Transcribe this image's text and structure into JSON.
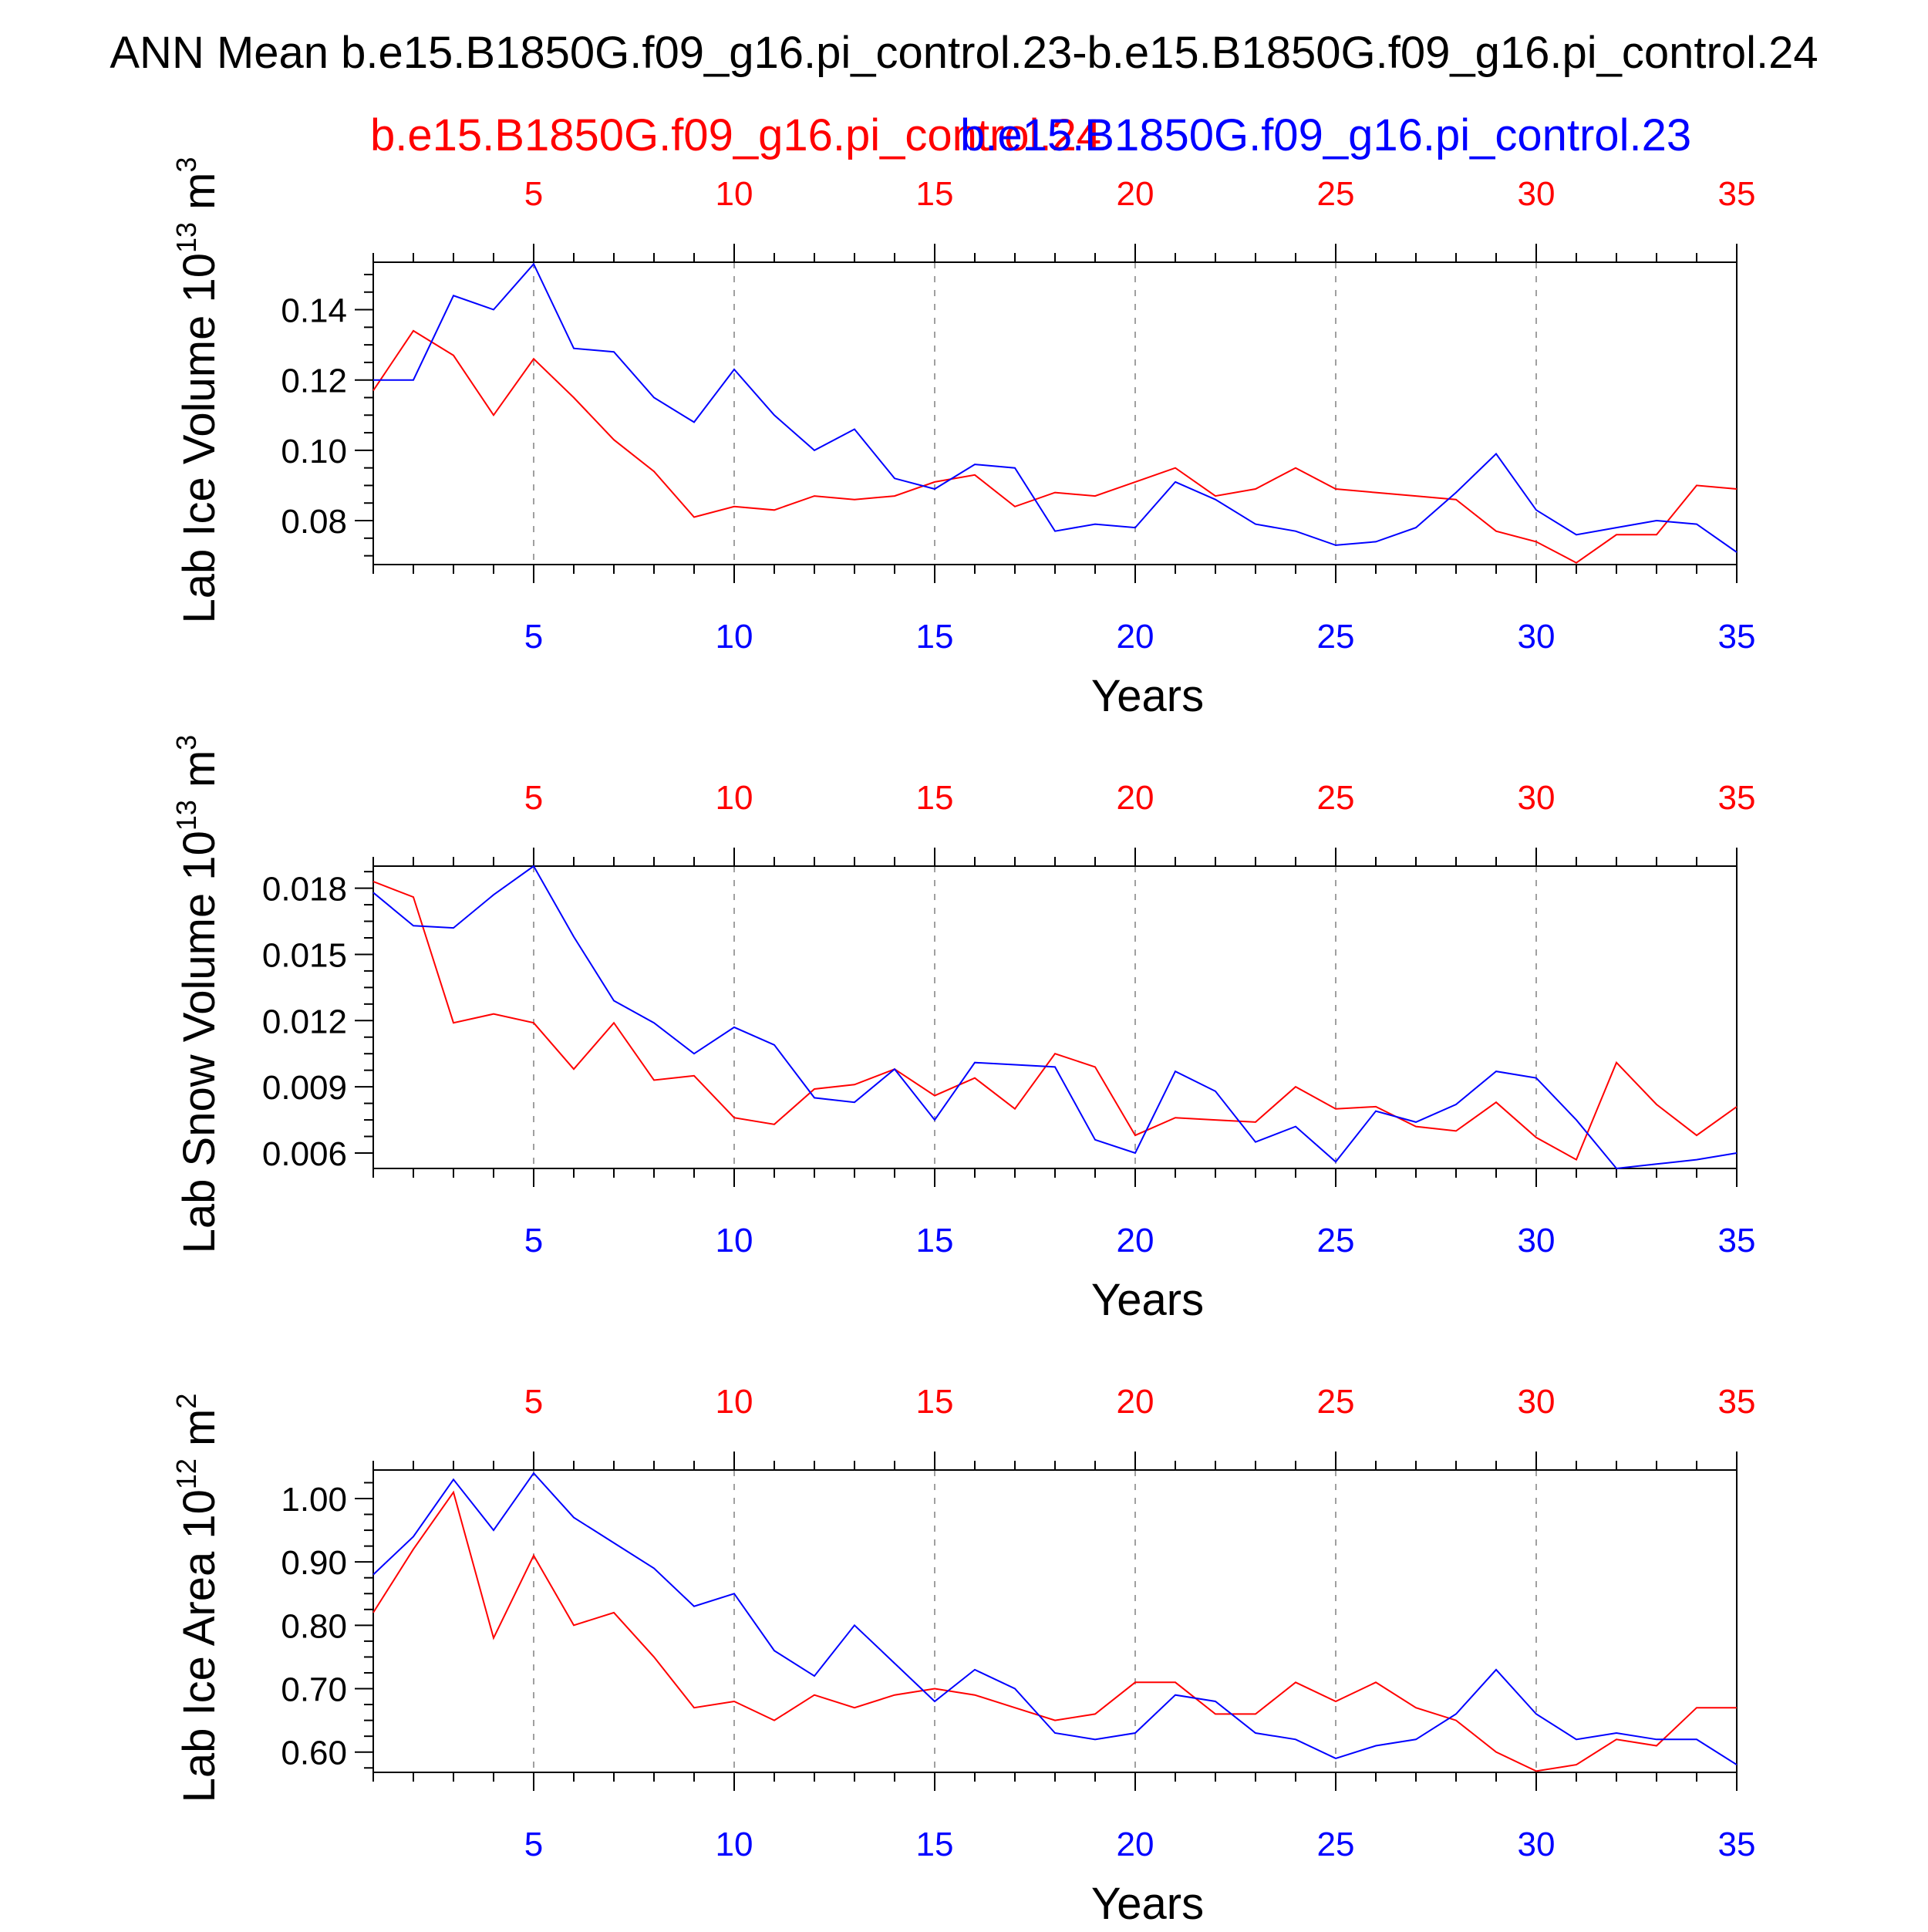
{
  "title": "ANN Mean b.e15.B1850G.f09_g16.pi_control.23-b.e15.B1850G.f09_g16.pi_control.24",
  "legend": {
    "red_label": "b.e15.B1850G.f09_g16.pi_control.24",
    "blue_label": "b.e15.B1850G.f09_g16.pi_control.23"
  },
  "colors": {
    "series_a": "#ff0000",
    "series_b": "#0000ff",
    "axis": "#000000",
    "grid": "#a0a0a0"
  },
  "chart_data": [
    {
      "type": "line",
      "ylabel": "Lab Ice Volume 10",
      "ylabel_exp": "13",
      "ylabel_unit": " m",
      "ylabel_unit_exp": "3",
      "xlabel": "Years",
      "xlim": [
        1,
        35
      ],
      "ylim": [
        0.0675,
        0.1535
      ],
      "xticks": [
        "5",
        "10",
        "15",
        "20",
        "25",
        "30",
        "35"
      ],
      "yticks": [
        "0.08",
        "0.10",
        "0.12",
        "0.14"
      ],
      "x": [
        1,
        2,
        3,
        4,
        5,
        6,
        7,
        8,
        9,
        10,
        11,
        12,
        13,
        14,
        15,
        16,
        17,
        18,
        19,
        20,
        21,
        22,
        23,
        24,
        25,
        26,
        27,
        28,
        29,
        30,
        31,
        32,
        33,
        34,
        35
      ],
      "grid": "vertical dashed at major ticks",
      "series": [
        {
          "name": "b.e15.B1850G.f09_g16.pi_control.24",
          "color": "red",
          "values": [
            0.117,
            0.134,
            0.127,
            0.11,
            0.126,
            0.115,
            0.103,
            0.094,
            0.081,
            0.084,
            0.083,
            0.087,
            0.086,
            0.087,
            0.091,
            0.093,
            0.084,
            0.088,
            0.087,
            0.091,
            0.095,
            0.087,
            0.089,
            0.095,
            0.089,
            0.088,
            0.087,
            0.086,
            0.077,
            0.074,
            0.068,
            0.076,
            0.076,
            0.09,
            0.089
          ]
        },
        {
          "name": "b.e15.B1850G.f09_g16.pi_control.23",
          "color": "blue",
          "values": [
            0.12,
            0.12,
            0.144,
            0.14,
            0.153,
            0.129,
            0.128,
            0.115,
            0.108,
            0.123,
            0.11,
            0.1,
            0.106,
            0.092,
            0.089,
            0.096,
            0.095,
            0.077,
            0.079,
            0.078,
            0.091,
            0.086,
            0.079,
            0.077,
            0.073,
            0.074,
            0.078,
            0.088,
            0.099,
            0.083,
            0.076,
            0.078,
            0.08,
            0.079,
            0.071
          ]
        }
      ]
    },
    {
      "type": "line",
      "ylabel": "Lab Snow Volume 10",
      "ylabel_exp": "13",
      "ylabel_unit": " m",
      "ylabel_unit_exp": "3",
      "xlabel": "Years",
      "xlim": [
        1,
        35
      ],
      "ylim": [
        0.0053,
        0.019
      ],
      "xticks": [
        "5",
        "10",
        "15",
        "20",
        "25",
        "30",
        "35"
      ],
      "yticks": [
        "0.006",
        "0.009",
        "0.012",
        "0.015",
        "0.018"
      ],
      "x": [
        1,
        2,
        3,
        4,
        5,
        6,
        7,
        8,
        9,
        10,
        11,
        12,
        13,
        14,
        15,
        16,
        17,
        18,
        19,
        20,
        21,
        22,
        23,
        24,
        25,
        26,
        27,
        28,
        29,
        30,
        31,
        32,
        33,
        34,
        35
      ],
      "grid": "vertical dashed at major ticks",
      "series": [
        {
          "name": "b.e15.B1850G.f09_g16.pi_control.24",
          "color": "red",
          "values": [
            0.0183,
            0.0176,
            0.0119,
            0.0123,
            0.0119,
            0.0098,
            0.0119,
            0.0093,
            0.0095,
            0.0076,
            0.0073,
            0.0089,
            0.0091,
            0.0098,
            0.0086,
            0.0094,
            0.008,
            0.0105,
            0.0099,
            0.0068,
            0.0076,
            0.0075,
            0.0074,
            0.009,
            0.008,
            0.0081,
            0.0072,
            0.007,
            0.0083,
            0.0067,
            0.0057,
            0.0101,
            0.0082,
            0.0068,
            0.0081
          ]
        },
        {
          "name": "b.e15.B1850G.f09_g16.pi_control.23",
          "color": "blue",
          "values": [
            0.0178,
            0.0163,
            0.0162,
            0.0177,
            0.019,
            0.0158,
            0.0129,
            0.0119,
            0.0105,
            0.0117,
            0.0109,
            0.0085,
            0.0083,
            0.0098,
            0.0075,
            0.0101,
            0.01,
            0.0099,
            0.0066,
            0.006,
            0.0097,
            0.0088,
            0.0065,
            0.0072,
            0.0056,
            0.0079,
            0.0074,
            0.0082,
            0.0097,
            0.0094,
            0.0075,
            0.0053,
            0.0055,
            0.0057,
            0.006
          ]
        }
      ]
    },
    {
      "type": "line",
      "ylabel": "Lab Ice Area 10",
      "ylabel_exp": "12",
      "ylabel_unit": " m",
      "ylabel_unit_exp": "2",
      "xlabel": "Years",
      "xlim": [
        1,
        35
      ],
      "ylim": [
        0.568,
        1.045
      ],
      "xticks": [
        "5",
        "10",
        "15",
        "20",
        "25",
        "30",
        "35"
      ],
      "yticks": [
        "0.60",
        "0.70",
        "0.80",
        "0.90",
        "1.00"
      ],
      "x": [
        1,
        2,
        3,
        4,
        5,
        6,
        7,
        8,
        9,
        10,
        11,
        12,
        13,
        14,
        15,
        16,
        17,
        18,
        19,
        20,
        21,
        22,
        23,
        24,
        25,
        26,
        27,
        28,
        29,
        30,
        31,
        32,
        33,
        34,
        35
      ],
      "grid": "vertical dashed at major ticks",
      "series": [
        {
          "name": "b.e15.B1850G.f09_g16.pi_control.24",
          "color": "red",
          "values": [
            0.82,
            0.92,
            1.01,
            0.78,
            0.91,
            0.8,
            0.82,
            0.75,
            0.67,
            0.68,
            0.65,
            0.69,
            0.67,
            0.69,
            0.7,
            0.69,
            0.67,
            0.65,
            0.66,
            0.71,
            0.71,
            0.66,
            0.66,
            0.71,
            0.68,
            0.71,
            0.67,
            0.65,
            0.6,
            0.57,
            0.58,
            0.62,
            0.61,
            0.67,
            0.67
          ]
        },
        {
          "name": "b.e15.B1850G.f09_g16.pi_control.23",
          "color": "blue",
          "values": [
            0.88,
            0.94,
            1.03,
            0.95,
            1.04,
            0.97,
            0.93,
            0.89,
            0.83,
            0.85,
            0.76,
            0.72,
            0.8,
            0.74,
            0.68,
            0.73,
            0.7,
            0.63,
            0.62,
            0.63,
            0.69,
            0.68,
            0.63,
            0.62,
            0.59,
            0.61,
            0.62,
            0.66,
            0.73,
            0.66,
            0.62,
            0.63,
            0.62,
            0.62,
            0.58
          ]
        }
      ]
    }
  ]
}
